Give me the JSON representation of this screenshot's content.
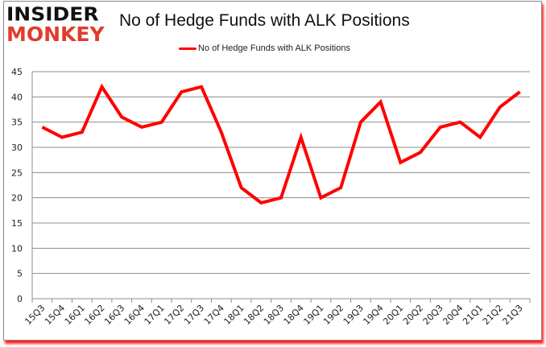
{
  "brand": {
    "line1": "INSIDER",
    "line2": "MONKEY",
    "line2_color": "#e03c2c"
  },
  "chart_data": {
    "type": "line",
    "title": "No of Hedge Funds with ALK Positions",
    "xlabel": "",
    "ylabel": "",
    "ylim": [
      0,
      45
    ],
    "yticks": [
      0,
      5,
      10,
      15,
      20,
      25,
      30,
      35,
      40,
      45
    ],
    "grid": true,
    "legend_position": "top",
    "categories": [
      "15Q3",
      "15Q4",
      "16Q1",
      "16Q2",
      "16Q3",
      "16Q4",
      "17Q1",
      "17Q2",
      "17Q3",
      "17Q4",
      "18Q1",
      "18Q2",
      "18Q3",
      "18Q4",
      "19Q1",
      "19Q2",
      "19Q3",
      "19Q4",
      "20Q1",
      "20Q2",
      "20Q3",
      "20Q4",
      "21Q1",
      "21Q2",
      "21Q3"
    ],
    "series": [
      {
        "name": "No of Hedge Funds with ALK Positions",
        "color": "#ff0000",
        "values": [
          34,
          32,
          33,
          42,
          36,
          34,
          35,
          41,
          42,
          33,
          22,
          19,
          20,
          32,
          20,
          22,
          35,
          39,
          27,
          29,
          34,
          35,
          32,
          38,
          41
        ]
      }
    ]
  }
}
